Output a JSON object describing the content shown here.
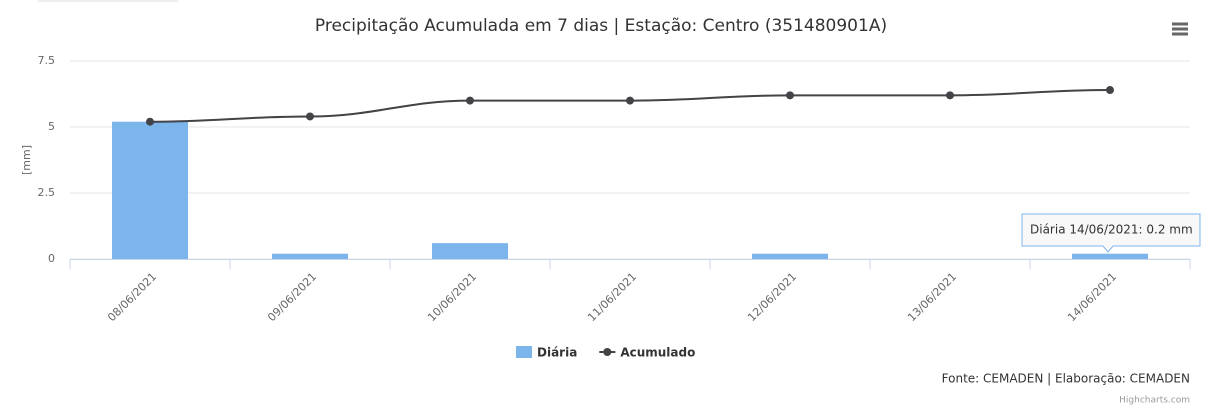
{
  "chart_data": {
    "type": "bar-line",
    "title": "Precipitação Acumulada em 7 dias | Estação: Centro (351480901A)",
    "y_label": "[mm]",
    "categories": [
      "08/06/2021",
      "09/06/2021",
      "10/06/2021",
      "11/06/2021",
      "12/06/2021",
      "13/06/2021",
      "14/06/2021"
    ],
    "series": [
      {
        "name": "Diária",
        "type": "bar",
        "color": "#7cb5ec",
        "values": [
          5.2,
          0.2,
          0.6,
          0,
          0.2,
          0,
          0.2
        ]
      },
      {
        "name": "Acumulado",
        "type": "line",
        "color": "#434348",
        "values": [
          5.2,
          5.4,
          6.0,
          6.0,
          6.2,
          6.2,
          6.4
        ]
      }
    ],
    "ylim": [
      0,
      7.5
    ],
    "yticks": [
      0,
      2.5,
      5,
      7.5
    ],
    "grid": true,
    "tooltip": "Diária 14/06/2021: 0.2 mm",
    "credits": "Fonte: CEMADEN | Elaboração: CEMADEN",
    "credits_link": "Highcharts.com"
  }
}
